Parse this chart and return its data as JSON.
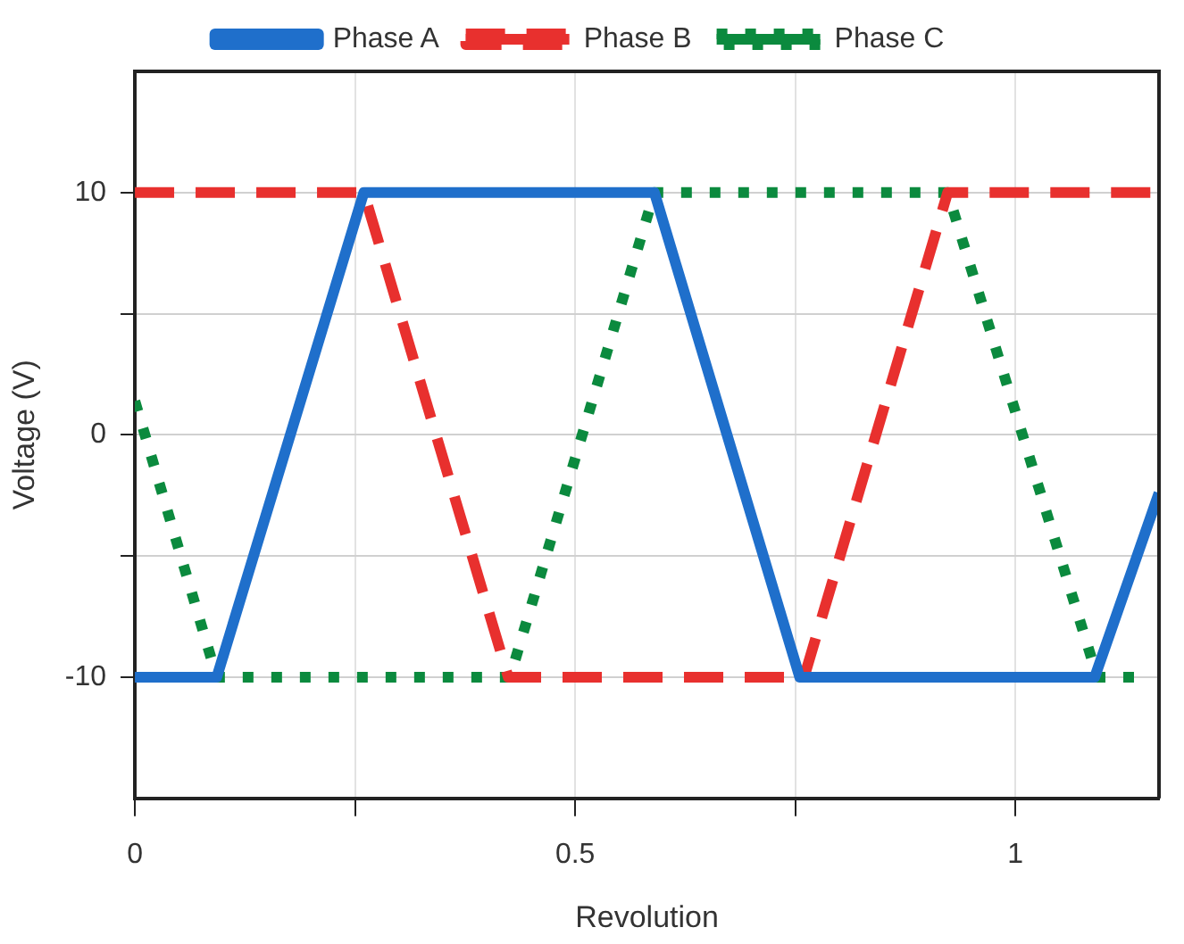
{
  "chart_data": {
    "type": "line",
    "xlabel": "Revolution",
    "ylabel": "Voltage (V)",
    "xlim": [
      0,
      1.163
    ],
    "xticks": [
      0,
      {
        "value": 0.25,
        "label": null
      },
      0.5,
      {
        "value": 0.75,
        "label": null
      },
      1
    ],
    "ylim": [
      -15,
      15
    ],
    "yticks": [
      {
        "value": -10,
        "label": "-10"
      },
      {
        "value": -5,
        "label": null
      },
      0,
      {
        "value": 5,
        "label": null
      },
      10
    ],
    "grid": true,
    "legend": "top",
    "marker": "none",
    "series": [
      {
        "name": "Phase A",
        "color": "#1f6fcb",
        "line_style": "solid",
        "x": [
          0,
          0.093,
          0.26,
          0.59,
          0.755,
          1.09,
          1.163
        ],
        "values": [
          -10,
          -10,
          10,
          10,
          -10,
          -10,
          -2.4
        ]
      },
      {
        "name": "Phase B",
        "color": "#e8302e",
        "line_style": "dashed",
        "x": [
          0,
          0.26,
          0.424,
          0.76,
          0.923,
          1.163
        ],
        "values": [
          10,
          10,
          -10,
          -10,
          10,
          10
        ]
      },
      {
        "name": "Phase C",
        "color": "#0b8a3e",
        "line_style": "dotted",
        "x": [
          0,
          0.093,
          0.426,
          0.59,
          0.923,
          1.093,
          1.14
        ],
        "values": [
          1.4,
          -10,
          -10,
          10,
          10,
          -10,
          -10
        ]
      }
    ]
  }
}
